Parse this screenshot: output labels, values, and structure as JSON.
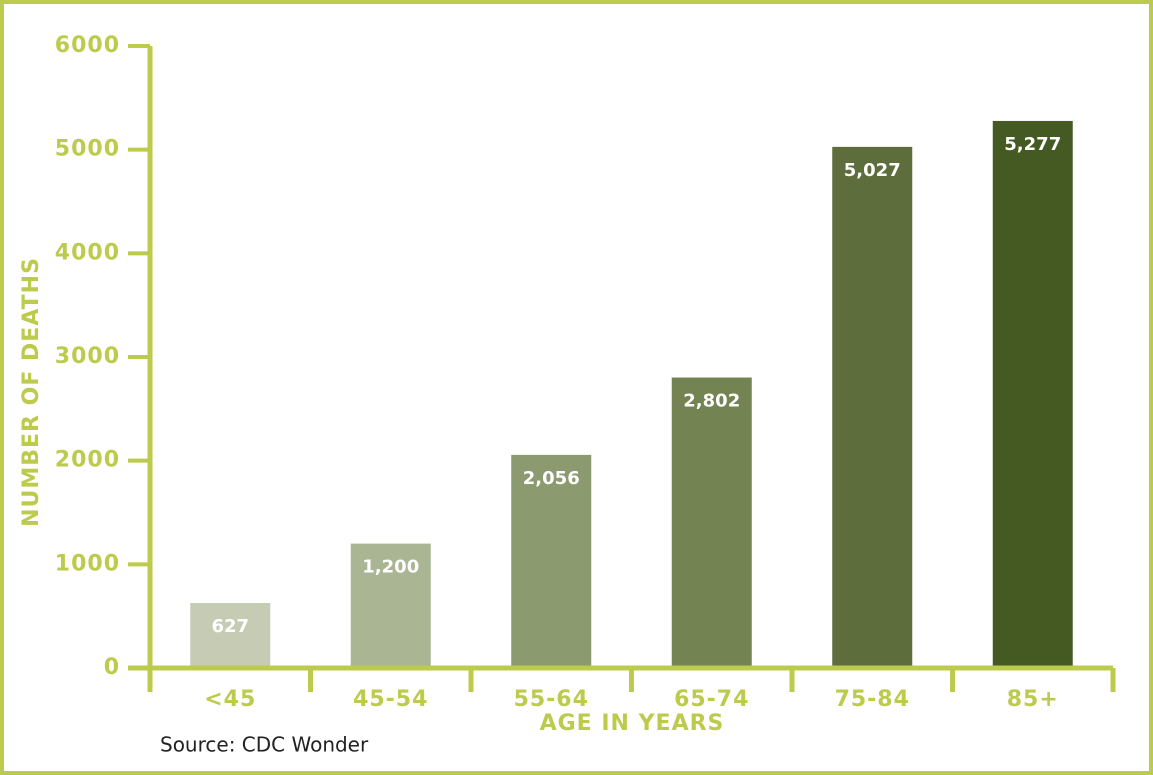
{
  "chart_data": {
    "type": "bar",
    "categories": [
      "<45",
      "45-54",
      "55-64",
      "65-74",
      "75-84",
      "85+"
    ],
    "values": [
      627,
      1200,
      2056,
      2802,
      5027,
      5277
    ],
    "value_labels": [
      "627",
      "1,200",
      "2,056",
      "2,802",
      "5,027",
      "5,277"
    ],
    "colors": [
      "#c6cbb4",
      "#a9b593",
      "#8c9a6f",
      "#738352",
      "#5d6d3c",
      "#455a23"
    ],
    "axis_color": "#bccb4c",
    "ylim": [
      0,
      6000
    ],
    "yticks": [
      0,
      1000,
      2000,
      3000,
      4000,
      5000,
      6000
    ],
    "y_label": "NUMBER OF DEATHS",
    "x_label": "AGE IN YEARS",
    "source": "Source: CDC Wonder"
  }
}
